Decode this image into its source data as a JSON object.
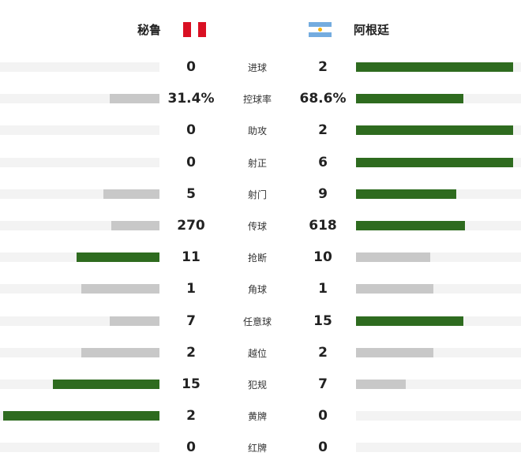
{
  "home": {
    "name": "秘鲁",
    "flag_icon": "peru-flag-icon"
  },
  "away": {
    "name": "阿根廷",
    "flag_icon": "argentina-flag-icon"
  },
  "colors": {
    "win_bar": "#2e6b1f",
    "lose_bar": "#c8c8c8",
    "track": "#f3f3f3",
    "peru_red": "#d91023",
    "argentina_blue": "#74acdf",
    "argentina_sun": "#f6b40e"
  },
  "stats": [
    {
      "label": "进球",
      "home": "0",
      "away": "2",
      "home_fill": 0.0,
      "away_fill": 0.95,
      "leader": "away"
    },
    {
      "label": "控球率",
      "home": "31.4%",
      "away": "68.6%",
      "home_fill": 0.31,
      "away_fill": 0.65,
      "leader": "away"
    },
    {
      "label": "助攻",
      "home": "0",
      "away": "2",
      "home_fill": 0.0,
      "away_fill": 0.95,
      "leader": "away"
    },
    {
      "label": "射正",
      "home": "0",
      "away": "6",
      "home_fill": 0.0,
      "away_fill": 0.95,
      "leader": "away"
    },
    {
      "label": "射门",
      "home": "5",
      "away": "9",
      "home_fill": 0.35,
      "away_fill": 0.61,
      "leader": "away"
    },
    {
      "label": "传球",
      "home": "270",
      "away": "618",
      "home_fill": 0.3,
      "away_fill": 0.66,
      "leader": "away"
    },
    {
      "label": "抢断",
      "home": "11",
      "away": "10",
      "home_fill": 0.52,
      "away_fill": 0.45,
      "leader": "home"
    },
    {
      "label": "角球",
      "home": "1",
      "away": "1",
      "home_fill": 0.49,
      "away_fill": 0.47,
      "leader": "none"
    },
    {
      "label": "任意球",
      "home": "7",
      "away": "15",
      "home_fill": 0.31,
      "away_fill": 0.65,
      "leader": "away"
    },
    {
      "label": "越位",
      "home": "2",
      "away": "2",
      "home_fill": 0.49,
      "away_fill": 0.47,
      "leader": "none"
    },
    {
      "label": "犯规",
      "home": "15",
      "away": "7",
      "home_fill": 0.67,
      "away_fill": 0.3,
      "leader": "home"
    },
    {
      "label": "黄牌",
      "home": "2",
      "away": "0",
      "home_fill": 0.98,
      "away_fill": 0.0,
      "leader": "home"
    },
    {
      "label": "红牌",
      "home": "0",
      "away": "0",
      "home_fill": 0.0,
      "away_fill": 0.0,
      "leader": "none"
    }
  ]
}
